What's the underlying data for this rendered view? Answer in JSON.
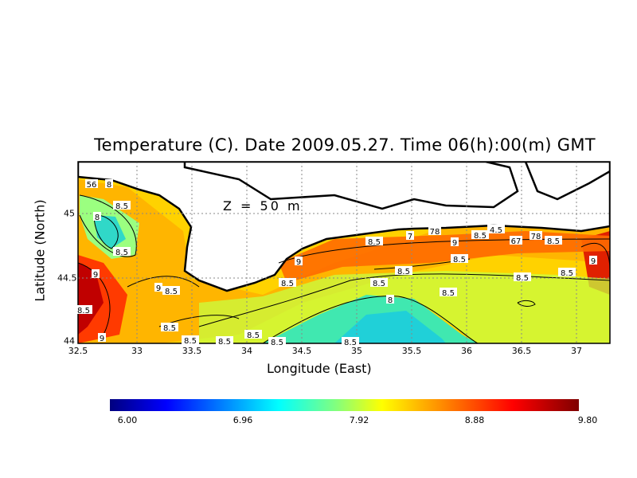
{
  "title": "Temperature (C). Date 2009.05.27. Time 06(h):00(m) GMT",
  "depth_label": "Z = 50 m",
  "xlabel": "Longitude (East)",
  "ylabel": "Latitude (North)",
  "x_ticks": [
    "32.5",
    "33",
    "33.5",
    "34",
    "34.5",
    "35",
    "35.5",
    "36",
    "36.5",
    "37"
  ],
  "y_ticks": [
    "45",
    "44.5",
    "44"
  ],
  "colorbar_ticks": [
    "6.00",
    "6.96",
    "7.92",
    "8.88",
    "9.80"
  ],
  "contour_labels": [
    {
      "text": "56"
    },
    {
      "text": "8"
    },
    {
      "text": "8.5"
    },
    {
      "text": "8"
    },
    {
      "text": "8.5"
    },
    {
      "text": "9"
    },
    {
      "text": "9"
    },
    {
      "text": "8.5"
    },
    {
      "text": "8.5"
    },
    {
      "text": "9"
    },
    {
      "text": "8.5"
    },
    {
      "text": "8.5"
    },
    {
      "text": "8.5"
    },
    {
      "text": "8.5"
    },
    {
      "text": "9"
    },
    {
      "text": "8.5"
    },
    {
      "text": "8.5"
    },
    {
      "text": "7"
    },
    {
      "text": "78"
    },
    {
      "text": "9"
    },
    {
      "text": "8.5"
    },
    {
      "text": "8.5"
    },
    {
      "text": "8"
    },
    {
      "text": "8.5"
    },
    {
      "text": "4.5"
    },
    {
      "text": "8.5"
    },
    {
      "text": "67"
    },
    {
      "text": "78"
    },
    {
      "text": "8.5"
    },
    {
      "text": "8.5"
    },
    {
      "text": "8.5"
    },
    {
      "text": "9"
    },
    {
      "text": "8.5"
    },
    {
      "text": "8.5"
    },
    {
      "text": "8.5"
    }
  ],
  "colors": {
    "land": "#ffffff",
    "coast": "#000000",
    "grid": "#888888"
  },
  "colorbar_range": [
    6.0,
    9.8
  ]
}
